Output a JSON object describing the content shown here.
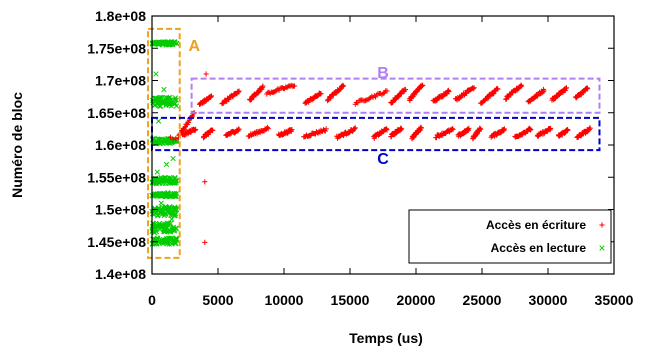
{
  "chart_data": {
    "type": "scatter",
    "title": "",
    "xlabel": "Temps (us)",
    "ylabel": "Numéro de bloc",
    "xlim": [
      0,
      35000
    ],
    "ylim": [
      140000000,
      180000000
    ],
    "x_ticks": [
      0,
      5000,
      10000,
      15000,
      20000,
      25000,
      30000,
      35000
    ],
    "x_tick_labels": [
      "0",
      "5000",
      "10000",
      "15000",
      "20000",
      "25000",
      "30000",
      "35000"
    ],
    "y_ticks": [
      140000000,
      145000000,
      150000000,
      155000000,
      160000000,
      165000000,
      170000000,
      175000000,
      180000000
    ],
    "y_tick_labels": [
      "1.4e+08",
      "1.45e+08",
      "1.5e+08",
      "1.55e+08",
      "1.6e+08",
      "1.65e+08",
      "1.7e+08",
      "1.75e+08",
      "1.8e+08"
    ],
    "grid": false,
    "legend_position": "bottom-right",
    "series": [
      {
        "name": "Accès en écriture",
        "marker": "+",
        "color": "#ff0000",
        "bursts": [
          {
            "x": [
              2000,
              3200
            ],
            "y": [
              161300000,
              165000000
            ]
          },
          {
            "x": [
              3600,
              4500
            ],
            "y": [
              166300000,
              167500000
            ]
          },
          {
            "x": [
              5300,
              6600
            ],
            "y": [
              166500000,
              168300000
            ]
          },
          {
            "x": [
              7400,
              8400
            ],
            "y": [
              167000000,
              169000000
            ]
          },
          {
            "x": [
              8700,
              10800
            ],
            "y": [
              168000000,
              169300000
            ]
          },
          {
            "x": [
              11600,
              12800
            ],
            "y": [
              166500000,
              168000000
            ]
          },
          {
            "x": [
              13300,
              14500
            ],
            "y": [
              167000000,
              169200000
            ]
          },
          {
            "x": [
              15400,
              17800
            ],
            "y": [
              166500000,
              168300000
            ]
          },
          {
            "x": [
              18100,
              19200
            ],
            "y": [
              166500000,
              168700000
            ]
          },
          {
            "x": [
              19500,
              20500
            ],
            "y": [
              167000000,
              169400000
            ]
          },
          {
            "x": [
              21300,
              22500
            ],
            "y": [
              166700000,
              168400000
            ]
          },
          {
            "x": [
              23000,
              24400
            ],
            "y": [
              167000000,
              169000000
            ]
          },
          {
            "x": [
              24900,
              26200
            ],
            "y": [
              166500000,
              168700000
            ]
          },
          {
            "x": [
              26800,
              28000
            ],
            "y": [
              167200000,
              169300000
            ]
          },
          {
            "x": [
              28500,
              29700
            ],
            "y": [
              166700000,
              168500000
            ]
          },
          {
            "x": [
              30300,
              31400
            ],
            "y": [
              167000000,
              168800000
            ]
          },
          {
            "x": [
              32100,
              33000
            ],
            "y": [
              167300000,
              168800000
            ]
          },
          {
            "x": [
              2300,
              3300
            ],
            "y": [
              161500000,
              162500000
            ]
          },
          {
            "x": [
              3900,
              4600
            ],
            "y": [
              161300000,
              162300000
            ]
          },
          {
            "x": [
              5600,
              6600
            ],
            "y": [
              161500000,
              162400000
            ]
          },
          {
            "x": [
              7300,
              8800
            ],
            "y": [
              161400000,
              162600000
            ]
          },
          {
            "x": [
              9600,
              10600
            ],
            "y": [
              161500000,
              162300000
            ]
          },
          {
            "x": [
              11500,
              13200
            ],
            "y": [
              161300000,
              162400000
            ]
          },
          {
            "x": [
              14000,
              15400
            ],
            "y": [
              161200000,
              162500000
            ]
          },
          {
            "x": [
              16800,
              17800
            ],
            "y": [
              161200000,
              162500000
            ]
          },
          {
            "x": [
              18100,
              18900
            ],
            "y": [
              161400000,
              162600000
            ]
          },
          {
            "x": [
              19700,
              20400
            ],
            "y": [
              161100000,
              162700000
            ]
          },
          {
            "x": [
              21500,
              22800
            ],
            "y": [
              161300000,
              162400000
            ]
          },
          {
            "x": [
              23200,
              24000
            ],
            "y": [
              161400000,
              162400000
            ]
          },
          {
            "x": [
              24300,
              24900
            ],
            "y": [
              161100000,
              162600000
            ]
          },
          {
            "x": [
              25700,
              26700
            ],
            "y": [
              161300000,
              162400000
            ]
          },
          {
            "x": [
              27500,
              28700
            ],
            "y": [
              161200000,
              162500000
            ]
          },
          {
            "x": [
              29200,
              30200
            ],
            "y": [
              161400000,
              162500000
            ]
          },
          {
            "x": [
              30800,
              31500
            ],
            "y": [
              161400000,
              162300000
            ]
          },
          {
            "x": [
              32200,
              33200
            ],
            "y": [
              161200000,
              162500000
            ]
          }
        ],
        "points": [
          [
            4100,
            171000000
          ],
          [
            4000,
            154300000
          ],
          [
            4000,
            144900000
          ],
          [
            1400,
            161200000
          ],
          [
            1600,
            160900000
          ],
          [
            1800,
            161000000
          ]
        ]
      },
      {
        "name": "Accès en lecture",
        "marker": "x",
        "color": "#00cc00",
        "bands": [
          {
            "x": [
              0,
              1900
            ],
            "y": [
              175500000,
              176000000
            ]
          },
          {
            "x": [
              0,
              1900
            ],
            "y": [
              166000000,
              167400000
            ]
          },
          {
            "x": [
              0,
              1900
            ],
            "y": [
              160200000,
              161000000
            ]
          },
          {
            "x": [
              0,
              1900
            ],
            "y": [
              154000000,
              155000000
            ]
          },
          {
            "x": [
              0,
              1900
            ],
            "y": [
              152000000,
              152500000
            ]
          },
          {
            "x": [
              0,
              1900
            ],
            "y": [
              149000000,
              150500000
            ]
          },
          {
            "x": [
              0,
              1900
            ],
            "y": [
              146500000,
              148000000
            ]
          },
          {
            "x": [
              0,
              1900
            ],
            "y": [
              144600000,
              145600000
            ]
          }
        ],
        "points": [
          [
            300,
            171000000
          ],
          [
            900,
            168600000
          ],
          [
            1100,
            157000000
          ],
          [
            400,
            155800000
          ],
          [
            700,
            151000000
          ],
          [
            1700,
            176000000
          ],
          [
            1500,
            148500000
          ],
          [
            200,
            146400000
          ],
          [
            1200,
            152600000
          ],
          [
            500,
            163700000
          ],
          [
            1600,
            157900000
          ],
          [
            800,
            149800000
          ]
        ]
      }
    ],
    "annotations": [
      {
        "label": "A",
        "color": "#f0a020",
        "x": [
          -300,
          2100
        ],
        "y": [
          142500000,
          178000000
        ],
        "label_at": [
          3200,
          175500000
        ]
      },
      {
        "label": "B",
        "color": "#b080f0",
        "x": [
          3000,
          33900
        ],
        "y": [
          165000000,
          170300000
        ],
        "label_at": [
          17500,
          171300000
        ]
      },
      {
        "label": "C",
        "color": "#0000cc",
        "x": [
          0,
          33900
        ],
        "y": [
          159200000,
          164200000
        ],
        "label_at": [
          17500,
          158000000
        ]
      }
    ]
  }
}
